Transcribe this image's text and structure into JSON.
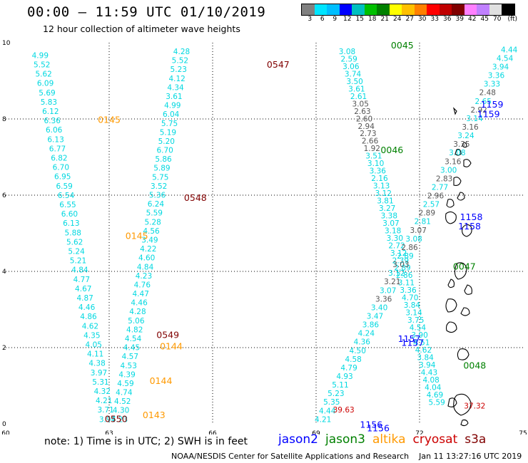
{
  "title": "00:00 – 11:59 UTC 01/10/2019",
  "subtitle": "12 hour collection of altimeter wave heights",
  "colorbar": {
    "colors": [
      "#808080",
      "#00e5ff",
      "#00bfff",
      "#0000ff",
      "#00c0c0",
      "#00c000",
      "#008000",
      "#ffff00",
      "#ffc000",
      "#ff8000",
      "#ff0000",
      "#c00000",
      "#800000",
      "#ff80ff",
      "#c080ff",
      "#e0e0e0",
      "#000000"
    ],
    "tick_labels": [
      "3",
      "6",
      "9",
      "12",
      "15",
      "18",
      "21",
      "24",
      "27",
      "30",
      "33",
      "36",
      "39",
      "42",
      "45",
      "70",
      "(ft)"
    ]
  },
  "axes": {
    "x_ticks": [
      "60",
      "63",
      "66",
      "69",
      "72",
      "75"
    ],
    "y_ticks": [
      "0",
      "2",
      "4",
      "6",
      "8",
      "10"
    ],
    "x_range": [
      60,
      75
    ],
    "y_range": [
      0,
      10
    ]
  },
  "colors": {
    "cyan": "#00d8e0",
    "gray": "#555555",
    "jason2": "#0000ff",
    "jason3": "#008000",
    "altika": "#ff9900",
    "cryosat": "#cc0000",
    "s3a": "#800000",
    "darkred": "#800000",
    "orange": "#ff9900",
    "green": "#008000",
    "blue": "#0000ff"
  },
  "labels": {
    "times": [
      {
        "text": "0547",
        "lon": 67.9,
        "lat": 9.35,
        "color": "darkred"
      },
      {
        "text": "0548",
        "lon": 65.5,
        "lat": 5.85,
        "color": "darkred"
      },
      {
        "text": "0549",
        "lon": 64.7,
        "lat": 2.25,
        "color": "darkred"
      },
      {
        "text": "0550",
        "lon": 63.2,
        "lat": 0.05,
        "color": "darkred"
      },
      {
        "text": "0145",
        "lon": 63.0,
        "lat": 7.9,
        "color": "orange"
      },
      {
        "text": "0145",
        "lon": 63.8,
        "lat": 4.85,
        "color": "orange"
      },
      {
        "text": "0144",
        "lon": 64.8,
        "lat": 1.95,
        "color": "orange"
      },
      {
        "text": "0144",
        "lon": 64.5,
        "lat": 1.05,
        "color": "orange"
      },
      {
        "text": "0143",
        "lon": 64.3,
        "lat": 0.15,
        "color": "orange"
      },
      {
        "text": "0045",
        "lon": 71.5,
        "lat": 9.85,
        "color": "green"
      },
      {
        "text": "0046",
        "lon": 71.2,
        "lat": 7.1,
        "color": "green"
      },
      {
        "text": "0047",
        "lon": 73.3,
        "lat": 4.05,
        "color": "green"
      },
      {
        "text": "0048",
        "lon": 73.6,
        "lat": 1.45,
        "color": "green"
      },
      {
        "text": "1159",
        "lon": 74.1,
        "lat": 8.3,
        "color": "blue"
      },
      {
        "text": "1159",
        "lon": 74.0,
        "lat": 8.05,
        "color": "blue"
      },
      {
        "text": "1158",
        "lon": 73.5,
        "lat": 5.35,
        "color": "blue"
      },
      {
        "text": "1158",
        "lon": 73.45,
        "lat": 5.1,
        "color": "blue"
      },
      {
        "text": "1157",
        "lon": 71.7,
        "lat": 2.15,
        "color": "blue"
      },
      {
        "text": "1157",
        "lon": 71.8,
        "lat": 2.05,
        "color": "blue"
      },
      {
        "text": "1156",
        "lon": 70.6,
        "lat": -0.1,
        "color": "blue"
      },
      {
        "text": "1156",
        "lon": 70.8,
        "lat": -0.2,
        "color": "blue"
      }
    ],
    "extra_values": [
      {
        "text": "39.63",
        "lon": 69.8,
        "lat": 0.3,
        "color": "cryosat"
      },
      {
        "text": "37.32",
        "lon": 73.6,
        "lat": 0.4,
        "color": "cryosat"
      }
    ]
  },
  "tracks": [
    {
      "name": "track-a",
      "lon_start": 61.0,
      "lon_end": 62.95,
      "lat_start": 9.6,
      "lat_end": 0.05,
      "color": "cyan",
      "values": [
        "4.99",
        "5.52",
        "5.62",
        "6.09",
        "5.69",
        "5.83",
        "6.12",
        "6.36",
        "6.06",
        "6.13",
        "6.77",
        "6.82",
        "6.70",
        "6.95",
        "6.59",
        "6.54",
        "6.55",
        "6.60",
        "6.13",
        "5.88",
        "5.62",
        "5.24",
        "5.21",
        "4.84",
        "4.77",
        "4.67",
        "4.87",
        "4.46",
        "4.86",
        "4.62",
        "4.35",
        "4.05",
        "4.11",
        "4.38",
        "3.97",
        "5.31",
        "4.32",
        "4.21",
        "3.71",
        "3.97"
      ]
    },
    {
      "name": "track-b",
      "lon_start": 65.1,
      "lon_end": 63.3,
      "lat_start": 9.7,
      "lat_end": 0.05,
      "color": "cyan",
      "values": [
        "4.28",
        "5.52",
        "5.23",
        "4.12",
        "4.34",
        "3.61",
        "4.99",
        "6.04",
        "5.75",
        "5.19",
        "5.20",
        "6.70",
        "5.86",
        "5.89",
        "5.75",
        "3.52",
        "5.36",
        "6.24",
        "5.59",
        "5.28",
        "4.56",
        "3.49",
        "4.22",
        "4.60",
        "4.84",
        "4.23",
        "4.76",
        "4.47",
        "4.46",
        "4.28",
        "5.06",
        "4.82",
        "4.54",
        "4.45",
        "4.57",
        "4.53",
        "4.39",
        "4.59",
        "4.74",
        "4.52",
        "4.30",
        "4.23"
      ]
    },
    {
      "name": "track-c",
      "lon_start": 69.9,
      "lon_end": 72.5,
      "lat_start": 9.7,
      "lat_end": 0.5,
      "color": "cyan",
      "values": [
        "3.08",
        "2.59",
        "3.06",
        "3.74",
        "3.50",
        "3.61",
        "2.61",
        "3.05",
        "2.63",
        "2.60",
        "2.94",
        "2.73",
        "2.66",
        "1.92",
        "3.51",
        "3.10",
        "3.36",
        "2.16",
        "3.13",
        "3.12",
        "3.81",
        "3.27",
        "3.38",
        "3.07",
        "3.18",
        "3.30",
        "2.72",
        "3.12",
        "2.39",
        "2.89",
        "2.86",
        "3.11",
        "3.36",
        "4.70",
        "3.84",
        "3.14",
        "3.75",
        "4.54",
        "3.90",
        "4.51",
        "4.62",
        "3.84",
        "3.94",
        "4.43",
        "4.08",
        "4.04",
        "4.69",
        "5.59"
      ]
    },
    {
      "name": "track-d",
      "lon_start": 74.6,
      "lon_end": 69.2,
      "lat_start": 9.75,
      "lat_end": 0.05,
      "color": "cyan",
      "values": [
        "4.44",
        "4.54",
        "3.94",
        "3.36",
        "3.33",
        "2.48",
        "2.65",
        "2.92",
        "3.14",
        "3.16",
        "3.24",
        "3.35",
        "3.08",
        "3.16",
        "3.00",
        "2.83",
        "2.77",
        "2.96",
        "2.57",
        "2.89",
        "2.81",
        "3.07",
        "3.08",
        "2.86",
        "2.89",
        "3.03",
        "3.12",
        "3.21",
        "3.07",
        "3.36",
        "3.40",
        "3.47",
        "3.86",
        "4.24",
        "4.36",
        "4.50",
        "4.58",
        "4.79",
        "4.93",
        "5.11",
        "5.23",
        "5.35",
        "4.44",
        "4.21"
      ]
    }
  ],
  "note": "note: 1) Time is in UTC; 2) SWH is in feet",
  "legend": [
    {
      "text": "jason2",
      "color": "jason2"
    },
    {
      "text": "jason3",
      "color": "jason3"
    },
    {
      "text": "altika",
      "color": "altika"
    },
    {
      "text": "cryosat",
      "color": "cryosat"
    },
    {
      "text": "s3a",
      "color": "s3a"
    }
  ],
  "footer": {
    "org": "NOAA/NESDIS Center for Satellite Applications and Research",
    "timestamp": "Jan 11 13:27:16 UTC 2019"
  }
}
